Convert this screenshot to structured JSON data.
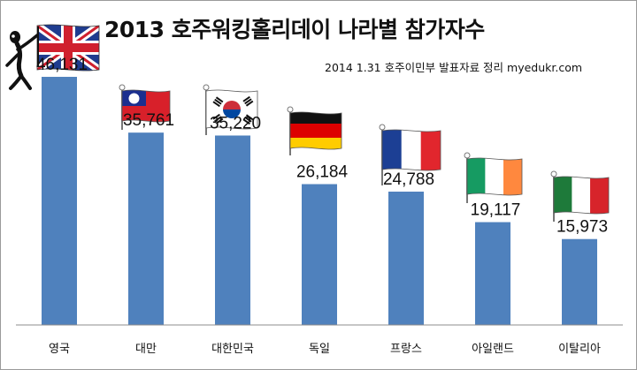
{
  "chart_data": {
    "type": "bar",
    "title": "2013 호주워킹홀리데이 나라별 참가자수",
    "subtitle": "2014 1.31 호주이민부 발표자료 정리 myedukr.com",
    "categories": [
      "영국",
      "대만",
      "대한민국",
      "독일",
      "프랑스",
      "아일랜드",
      "이탈리아"
    ],
    "values": [
      46131,
      35761,
      35220,
      26184,
      24788,
      19117,
      15973
    ],
    "value_labels": [
      "46,131",
      "35,761",
      "35,220",
      "26,184",
      "24,788",
      "19,117",
      "15,973"
    ],
    "flags": [
      "uk-flag-icon",
      "taiwan-flag-icon",
      "south-korea-flag-icon",
      "germany-flag-icon",
      "france-flag-icon",
      "ireland-flag-icon",
      "italy-flag-icon"
    ],
    "ylim": [
      0,
      55000
    ],
    "bar_color": "#4f81bd",
    "grid": false,
    "legend": "none"
  }
}
